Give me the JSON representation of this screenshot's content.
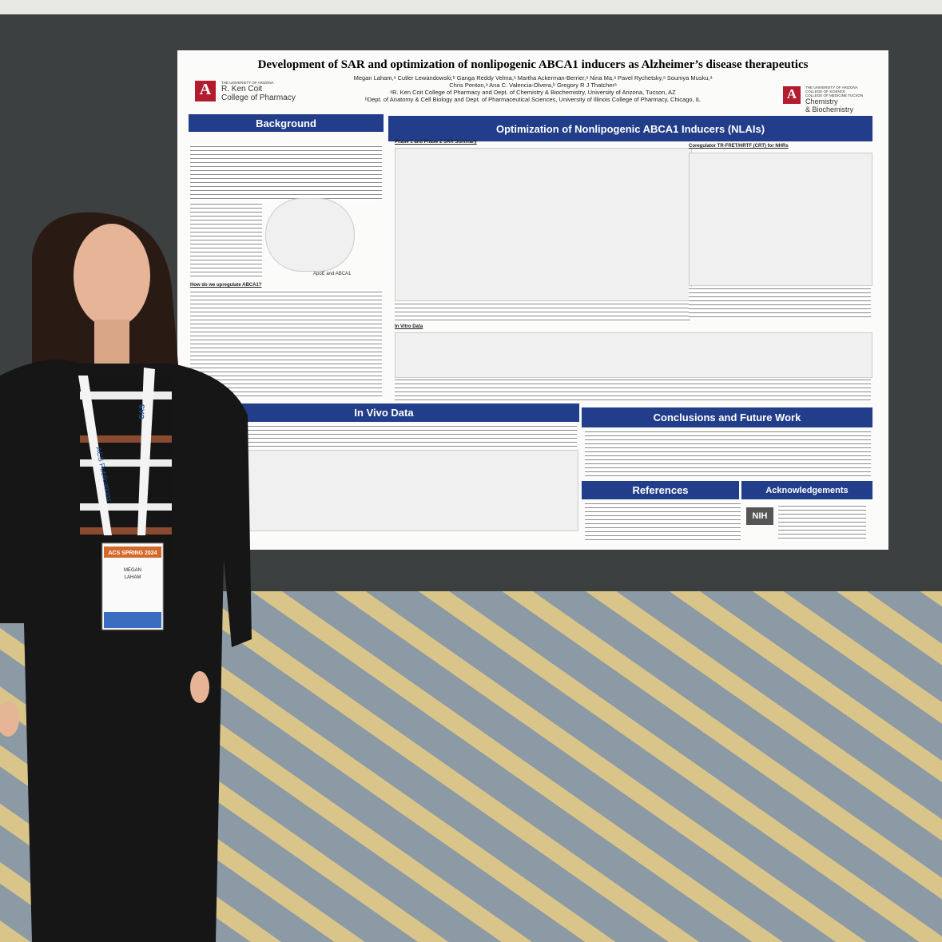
{
  "poster": {
    "title": "Development of SAR and optimization of nonlipogenic ABCA1 inducers as Alzheimer’s disease therapeutics",
    "authors": [
      "Megan Laham,ᵃ Cutler Lewandowski,ᵇ Ganga Reddy Velma,ᵃ Martha Ackerman-Berrier,ᵃ Nina Ma,ᵃ Pavel Rychetsky,ᵃ Soumya Musku,ᵃ",
      "Chris Penton,ᵃ Ana C. Valencia-Olvera,ᵇ Gregory R J Thatcherᵃ"
    ],
    "affiliations": [
      "ᵃR. Ken Coit College of Pharmacy and Dept. of Chemistry & Biochemistry, University of Arizona, Tucson, AZ",
      "ᵇDept. of Anatomy & Cell Biology and Dept. of Pharmaceutical Sciences, University of Illinois College of Pharmacy, Chicago, IL"
    ],
    "left_logo": {
      "university": "THE UNIVERSITY OF ARIZONA",
      "lines": [
        "R. Ken Coit",
        "College of Pharmacy"
      ]
    },
    "right_logo": {
      "university": "THE UNIVERSITY OF ARIZONA",
      "colleges": [
        "COLLEGE OF SCIENCE",
        "COLLEGE OF MEDICINE TUCSON"
      ],
      "lines": [
        "Chemistry",
        "& Biochemistry"
      ]
    },
    "sections": [
      "Background",
      "Optimization of Nonlipogenic ABCA1 Inducers (NLAIs)",
      "In Vivo Data",
      "Conclusions and Future Work",
      "References",
      "Acknowledgements"
    ],
    "subheads": [
      "Phase 1 and Phase 2 SAR Summary",
      "Coregulator TR-FRET/HRTF (CRT) for NHRs",
      "In Vitro Data",
      "How do we upregulate ABCA1?",
      "ApoE and ABCA1"
    ],
    "nih": "NIH"
  },
  "badge": {
    "event": "ACS SPRING 2024",
    "name": [
      "MEGAN",
      "LAHAM"
    ]
  },
  "lanyard": [
    "ACS Publications",
    "CAS"
  ]
}
